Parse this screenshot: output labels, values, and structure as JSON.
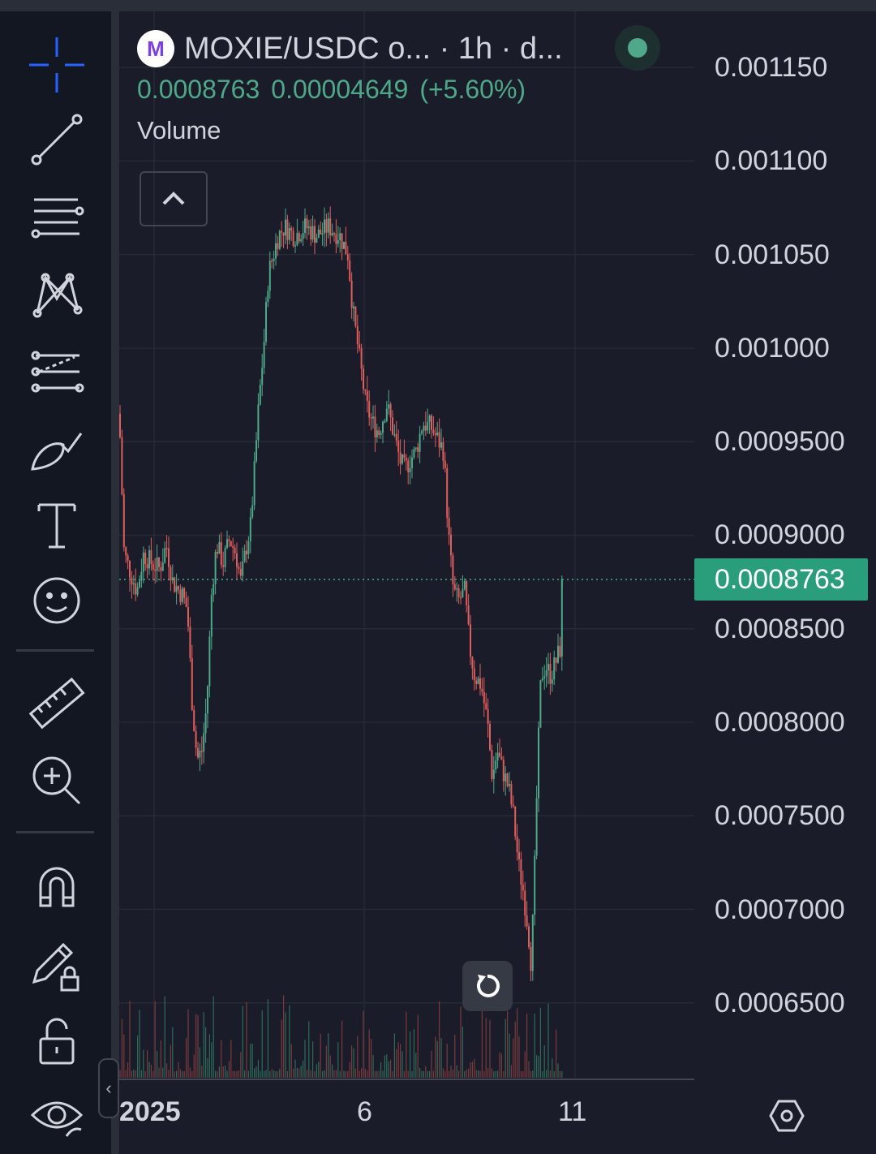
{
  "header": {
    "logo_letter": "M",
    "title": "MOXIE/USDC o...  · 1h · d...",
    "last_price": "0.0008763",
    "change_abs": "0.00004649",
    "change_pct": "(+5.60%)",
    "volume_label": "Volume"
  },
  "toolbar": {
    "tools": [
      "crosshair",
      "trend-line",
      "fib-lines",
      "pattern",
      "forecast",
      "brush",
      "text",
      "emoji",
      "ruler",
      "zoom-in",
      "magnet",
      "lock-drawings",
      "unlock",
      "hide-drawings"
    ],
    "collapse_glyph": "‹"
  },
  "colors": {
    "up": "#4fa889",
    "down": "#e05d5d",
    "background": "#1a1d29",
    "grid": "#262a36",
    "text": "#d1d4dc",
    "accent": "#2962ff"
  },
  "chart_data": {
    "type": "candlestick",
    "interval": "1h",
    "y_ticks": [
      "0.001150",
      "0.001100",
      "0.001050",
      "0.001000",
      "0.0009500",
      "0.0009000",
      "0.0008500",
      "0.0008000",
      "0.0007500",
      "0.0007000",
      "0.0006500"
    ],
    "y_range": [
      0.00061,
      0.00118
    ],
    "current_price_label": "0.0008763",
    "current_price": 0.0008763,
    "x_ticks": [
      "2025",
      "6",
      "11"
    ],
    "price_path": [
      [
        0,
        0.000965
      ],
      [
        6,
        0.00089
      ],
      [
        14,
        0.00088
      ],
      [
        22,
        0.00087
      ],
      [
        30,
        0.00089
      ],
      [
        40,
        0.000885
      ],
      [
        50,
        0.000882
      ],
      [
        58,
        0.000895
      ],
      [
        66,
        0.000875
      ],
      [
        78,
        0.000868
      ],
      [
        84,
        0.00086
      ],
      [
        90,
        0.00081
      ],
      [
        96,
        0.00078
      ],
      [
        102,
        0.000785
      ],
      [
        108,
        0.00081
      ],
      [
        114,
        0.00087
      ],
      [
        120,
        0.000895
      ],
      [
        128,
        0.000885
      ],
      [
        136,
        0.000898
      ],
      [
        144,
        0.00089
      ],
      [
        150,
        0.000875
      ],
      [
        156,
        0.000892
      ],
      [
        162,
        0.000905
      ],
      [
        166,
        0.00093
      ],
      [
        172,
        0.00097
      ],
      [
        178,
        0.001
      ],
      [
        184,
        0.00104
      ],
      [
        190,
        0.00105
      ],
      [
        196,
        0.00106
      ],
      [
        204,
        0.001065
      ],
      [
        216,
        0.00106
      ],
      [
        230,
        0.001065
      ],
      [
        244,
        0.00106
      ],
      [
        258,
        0.001065
      ],
      [
        272,
        0.00106
      ],
      [
        282,
        0.00105
      ],
      [
        288,
        0.00102
      ],
      [
        296,
        0.000995
      ],
      [
        304,
        0.00097
      ],
      [
        312,
        0.00096
      ],
      [
        320,
        0.000955
      ],
      [
        330,
        0.00097
      ],
      [
        338,
        0.000955
      ],
      [
        346,
        0.00094
      ],
      [
        352,
        0.000935
      ],
      [
        358,
        0.00094
      ],
      [
        366,
        0.000945
      ],
      [
        374,
        0.00096
      ],
      [
        384,
        0.000958
      ],
      [
        394,
        0.00095
      ],
      [
        400,
        0.000945
      ],
      [
        406,
        0.0009
      ],
      [
        412,
        0.00087
      ],
      [
        418,
        0.000865
      ],
      [
        426,
        0.00087
      ],
      [
        432,
        0.00084
      ],
      [
        438,
        0.000825
      ],
      [
        446,
        0.00082
      ],
      [
        454,
        0.0008
      ],
      [
        460,
        0.00077
      ],
      [
        466,
        0.000785
      ],
      [
        472,
        0.000775
      ],
      [
        480,
        0.000765
      ],
      [
        486,
        0.00075
      ],
      [
        492,
        0.000725
      ],
      [
        498,
        0.00071
      ],
      [
        504,
        0.00069
      ],
      [
        508,
        0.00067
      ],
      [
        512,
        0.00072
      ],
      [
        516,
        0.00078
      ],
      [
        520,
        0.000825
      ],
      [
        526,
        0.00083
      ],
      [
        532,
        0.000825
      ],
      [
        538,
        0.000832
      ],
      [
        544,
        0.00084
      ],
      [
        546,
        0.0008763
      ]
    ]
  }
}
